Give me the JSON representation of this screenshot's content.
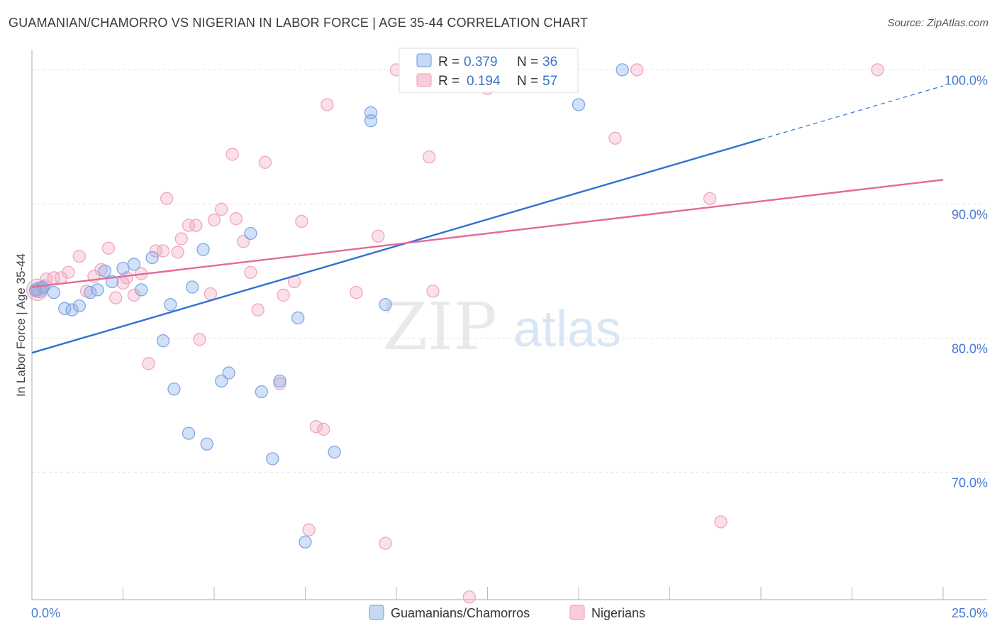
{
  "title": "GUAMANIAN/CHAMORRO VS NIGERIAN IN LABOR FORCE | AGE 35-44 CORRELATION CHART",
  "source": "Source: ZipAtlas.com",
  "watermark": {
    "zip": "ZIP",
    "atlas": "atlas"
  },
  "legend": {
    "rows": [
      {
        "r_label": "R =",
        "r_value": "0.379",
        "n_label": "N =",
        "n_value": "36"
      },
      {
        "r_label": "R =",
        "r_value": "0.194",
        "n_label": "N =",
        "n_value": "57"
      }
    ]
  },
  "chart_data": {
    "type": "scatter",
    "title": "GUAMANIAN/CHAMORRO VS NIGERIAN IN LABOR FORCE | AGE 35-44 CORRELATION CHART",
    "xlabel": "",
    "ylabel": "In Labor Force | Age 35-44",
    "xlim": [
      0,
      25
    ],
    "ylim": [
      60.5,
      101.5
    ],
    "x_tick_labels": [
      "0.0%",
      "25.0%"
    ],
    "y_ticks": [
      70,
      80,
      90,
      100
    ],
    "y_tick_labels": [
      "70.0%",
      "80.0%",
      "90.0%",
      "100.0%"
    ],
    "grid": true,
    "legend_position": "top-center",
    "colors": {
      "guam": "#7ea8e6",
      "guam_line": "#2f72d1",
      "nig": "#f2a5bf",
      "nig_line": "#e26a98",
      "tick": "#4a7bd0"
    },
    "series": [
      {
        "name": "Guamanians/Chamorros",
        "r": 0.379,
        "n": 36,
        "trend": {
          "x0": 0,
          "y0": 78.9,
          "x1": 25,
          "y1": 98.8,
          "solid_until": 20
        },
        "points": [
          [
            0.1,
            83.6
          ],
          [
            0.3,
            83.8
          ],
          [
            0.6,
            83.4
          ],
          [
            0.9,
            82.2
          ],
          [
            1.1,
            82.1
          ],
          [
            1.3,
            82.4
          ],
          [
            1.6,
            83.4
          ],
          [
            1.8,
            83.6
          ],
          [
            2.0,
            85.0
          ],
          [
            2.2,
            84.2
          ],
          [
            2.5,
            85.2
          ],
          [
            2.8,
            85.5
          ],
          [
            3.0,
            83.6
          ],
          [
            3.3,
            86.0
          ],
          [
            3.6,
            79.8
          ],
          [
            3.8,
            82.5
          ],
          [
            3.9,
            76.2
          ],
          [
            4.3,
            72.9
          ],
          [
            4.4,
            83.8
          ],
          [
            4.7,
            86.6
          ],
          [
            4.8,
            72.1
          ],
          [
            5.2,
            76.8
          ],
          [
            5.4,
            77.4
          ],
          [
            6.0,
            87.8
          ],
          [
            6.3,
            76.0
          ],
          [
            6.6,
            71.0
          ],
          [
            6.8,
            76.8
          ],
          [
            7.3,
            81.5
          ],
          [
            7.5,
            64.8
          ],
          [
            8.3,
            71.5
          ],
          [
            9.3,
            96.8
          ],
          [
            9.3,
            96.2
          ],
          [
            9.7,
            82.5
          ],
          [
            10.6,
            100.0
          ],
          [
            15.0,
            97.4
          ],
          [
            16.2,
            100.0
          ]
        ]
      },
      {
        "name": "Nigerians",
        "r": 0.194,
        "n": 57,
        "trend": {
          "x0": 0,
          "y0": 83.8,
          "x1": 25,
          "y1": 91.8
        },
        "points": [
          [
            0.2,
            83.6
          ],
          [
            0.4,
            84.4
          ],
          [
            0.6,
            84.5
          ],
          [
            0.8,
            84.5
          ],
          [
            1.0,
            84.9
          ],
          [
            1.3,
            86.1
          ],
          [
            1.5,
            83.5
          ],
          [
            1.7,
            84.6
          ],
          [
            1.9,
            85.1
          ],
          [
            2.1,
            86.7
          ],
          [
            2.3,
            83.0
          ],
          [
            2.5,
            84.1
          ],
          [
            2.6,
            84.5
          ],
          [
            2.8,
            83.2
          ],
          [
            3.0,
            84.8
          ],
          [
            3.2,
            78.1
          ],
          [
            3.4,
            86.5
          ],
          [
            3.6,
            86.5
          ],
          [
            3.7,
            90.4
          ],
          [
            4.0,
            86.4
          ],
          [
            4.1,
            87.4
          ],
          [
            4.3,
            88.4
          ],
          [
            4.5,
            88.4
          ],
          [
            4.6,
            79.9
          ],
          [
            4.9,
            83.3
          ],
          [
            5.0,
            88.8
          ],
          [
            5.2,
            89.6
          ],
          [
            5.5,
            93.7
          ],
          [
            5.6,
            88.9
          ],
          [
            5.8,
            87.2
          ],
          [
            6.0,
            84.9
          ],
          [
            6.2,
            82.1
          ],
          [
            6.4,
            93.1
          ],
          [
            6.8,
            76.6
          ],
          [
            6.9,
            83.2
          ],
          [
            7.2,
            84.2
          ],
          [
            7.4,
            88.7
          ],
          [
            7.6,
            65.7
          ],
          [
            7.8,
            73.4
          ],
          [
            8.0,
            73.2
          ],
          [
            8.1,
            97.4
          ],
          [
            8.9,
            83.4
          ],
          [
            9.5,
            87.6
          ],
          [
            9.7,
            64.7
          ],
          [
            10.0,
            100.0
          ],
          [
            10.9,
            93.5
          ],
          [
            11.0,
            83.5
          ],
          [
            12.0,
            60.7
          ],
          [
            12.0,
            100.0
          ],
          [
            12.5,
            98.6
          ],
          [
            16.0,
            94.9
          ],
          [
            16.6,
            100.0
          ],
          [
            18.6,
            90.4
          ],
          [
            18.9,
            66.3
          ],
          [
            23.2,
            100.0
          ],
          [
            0.1,
            83.5
          ],
          [
            0.35,
            83.9
          ]
        ]
      }
    ]
  }
}
